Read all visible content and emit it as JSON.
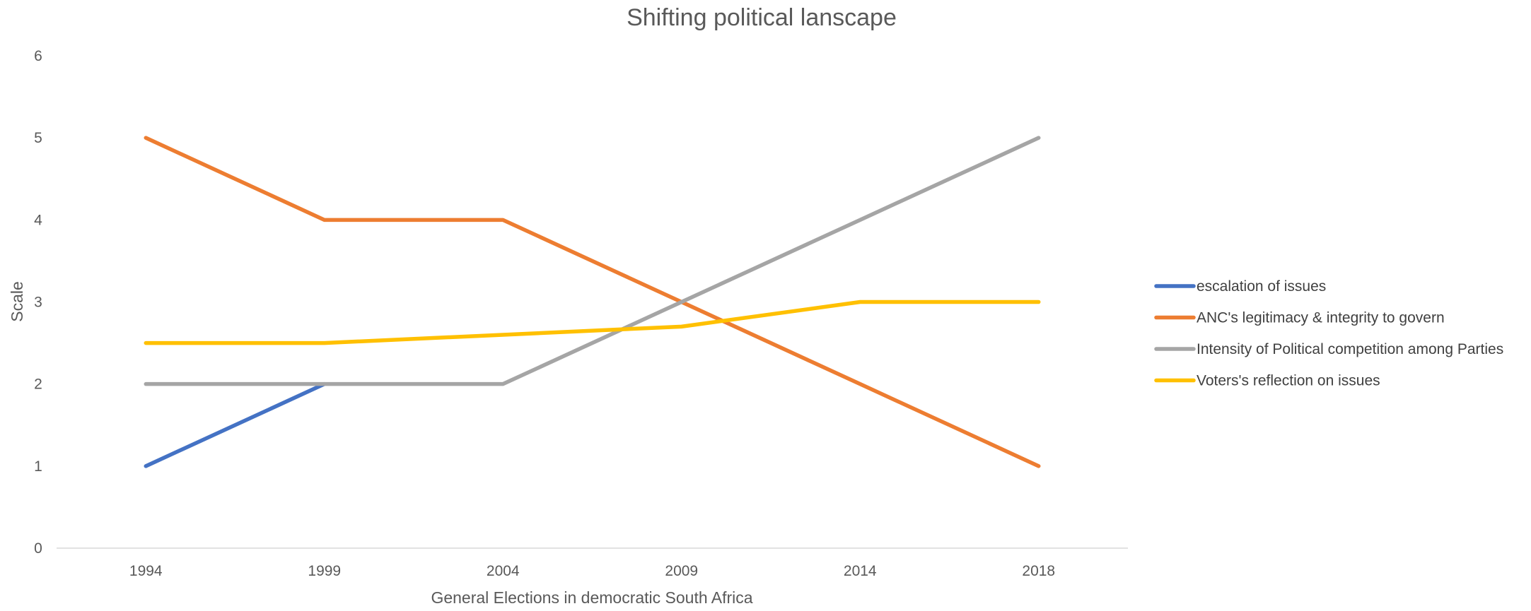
{
  "chart_data": {
    "type": "line",
    "title": "Shifting political lanscape",
    "xlabel": "General Elections in democratic South Africa",
    "ylabel": "Scale",
    "categories": [
      "1994",
      "1999",
      "2004",
      "2009",
      "2014",
      "2018"
    ],
    "ylim": [
      0,
      6
    ],
    "yticks": [
      0,
      1,
      2,
      3,
      4,
      5,
      6
    ],
    "grid": false,
    "legend_position": "right",
    "series": [
      {
        "name": "escalation of issues",
        "color": "#4472C4",
        "values": [
          1,
          2,
          null,
          null,
          null,
          null
        ]
      },
      {
        "name": "ANC's legitimacy & integrity to govern",
        "color": "#ED7D31",
        "values": [
          5,
          4,
          4,
          3,
          2,
          1
        ]
      },
      {
        "name": "Intensity of Political competition among Parties",
        "color": "#A5A5A5",
        "values": [
          2,
          2,
          2,
          3,
          4,
          5
        ]
      },
      {
        "name": "Voters's reflection on issues",
        "color": "#FFC000",
        "values": [
          2.5,
          2.5,
          2.6,
          2.7,
          3,
          3
        ]
      }
    ]
  }
}
